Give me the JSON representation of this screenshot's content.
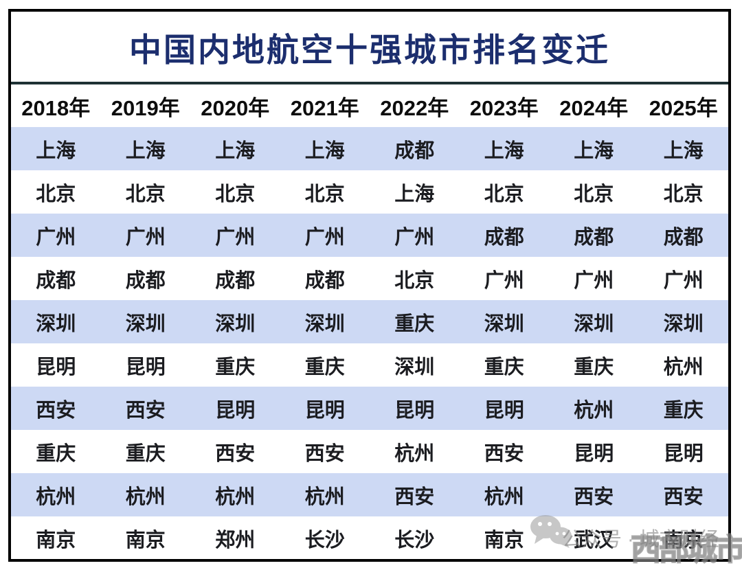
{
  "chart_data": {
    "type": "table",
    "title": "中国内地航空十强城市排名变迁",
    "columns": [
      "2018年",
      "2019年",
      "2020年",
      "2021年",
      "2022年",
      "2023年",
      "2024年",
      "2025年"
    ],
    "rows": [
      [
        "上海",
        "上海",
        "上海",
        "上海",
        "成都",
        "上海",
        "上海",
        "上海"
      ],
      [
        "北京",
        "北京",
        "北京",
        "北京",
        "上海",
        "北京",
        "北京",
        "北京"
      ],
      [
        "广州",
        "广州",
        "广州",
        "广州",
        "广州",
        "成都",
        "成都",
        "成都"
      ],
      [
        "成都",
        "成都",
        "成都",
        "成都",
        "北京",
        "广州",
        "广州",
        "广州"
      ],
      [
        "深圳",
        "深圳",
        "深圳",
        "深圳",
        "重庆",
        "深圳",
        "深圳",
        "深圳"
      ],
      [
        "昆明",
        "昆明",
        "重庆",
        "重庆",
        "深圳",
        "重庆",
        "重庆",
        "杭州"
      ],
      [
        "西安",
        "西安",
        "昆明",
        "昆明",
        "昆明",
        "昆明",
        "杭州",
        "重庆"
      ],
      [
        "重庆",
        "重庆",
        "西安",
        "西安",
        "杭州",
        "西安",
        "昆明",
        "昆明"
      ],
      [
        "杭州",
        "杭州",
        "杭州",
        "杭州",
        "西安",
        "杭州",
        "西安",
        "西安"
      ],
      [
        "南京",
        "南京",
        "郑州",
        "长沙",
        "长沙",
        "南京",
        "武汉",
        "南京"
      ]
    ],
    "layout": {
      "grid": "off",
      "row_stripe_color": "#cdd9f4",
      "border_color": "#000000"
    }
  },
  "watermark": {
    "icon": "wechat-icon",
    "label": "公众号 · 城市财经",
    "brand": "西部城市"
  },
  "colors": {
    "title": "#1c2e6e",
    "stripe": "#cdd9f4",
    "divider": "#1e3134",
    "text": "#1b1c20"
  }
}
